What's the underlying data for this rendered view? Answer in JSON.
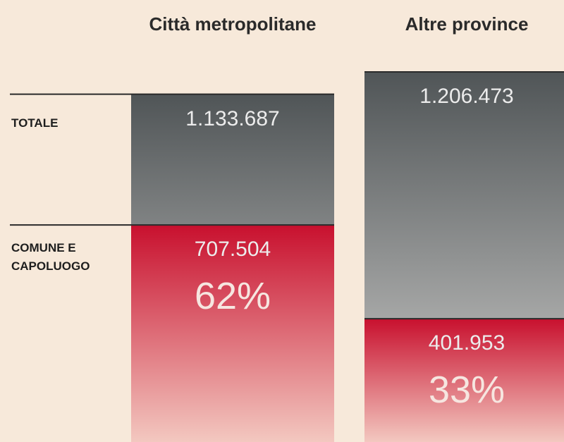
{
  "chart_data": {
    "type": "bar",
    "categories": [
      "Città metropolitane",
      "Altre province"
    ],
    "series": [
      {
        "name": "TOTALE",
        "color": "#505557",
        "values": [
          1133687,
          1206473
        ],
        "value_labels": [
          "1.133.687",
          "1.206.473"
        ]
      },
      {
        "name": "COMUNE E CAPOLUOGO",
        "color": "#c8102e",
        "values": [
          707504,
          401953
        ],
        "value_labels": [
          "707.504",
          "401.953"
        ],
        "shares": [
          62,
          33
        ],
        "share_labels": [
          "62%",
          "33%"
        ]
      }
    ]
  }
}
